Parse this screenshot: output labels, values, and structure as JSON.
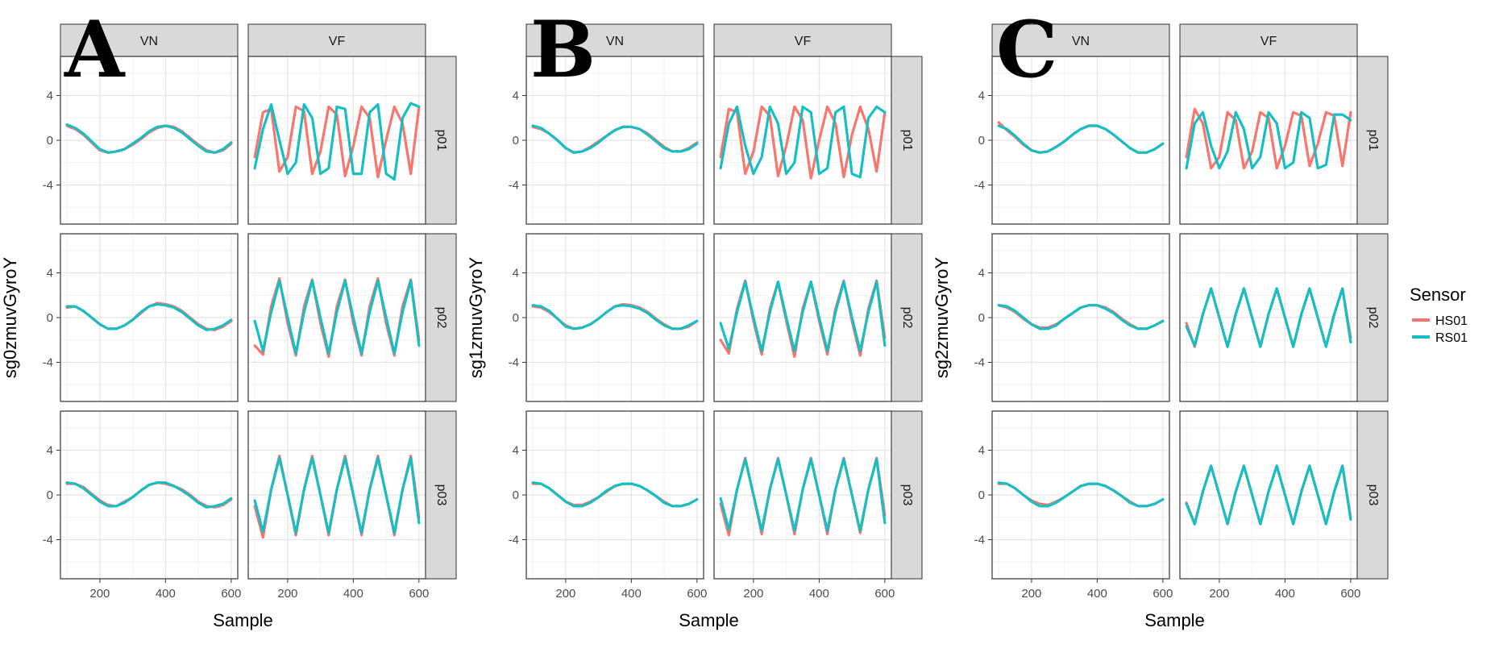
{
  "colors": {
    "HS01": "#F8766D",
    "RS01": "#17BFC4"
  },
  "legend": {
    "title": "Sensor",
    "entries": [
      {
        "label": "HS01",
        "color": "#F8766D"
      },
      {
        "label": "RS01",
        "color": "#17BFC4"
      }
    ]
  },
  "chart_data": [
    {
      "panel_label": "A",
      "type": "line",
      "xlabel": "Sample",
      "ylabel": "sg0zmuvGyroY",
      "columns": [
        "VN",
        "VF"
      ],
      "rows": [
        "p01",
        "p02",
        "p03"
      ],
      "xlim": [
        80,
        620
      ],
      "ylim": [
        -7.5,
        7.5
      ],
      "x_ticks": [
        200,
        400,
        600
      ],
      "y_ticks": [
        4,
        0,
        -4
      ],
      "x_tick_labels": [
        "200",
        "400",
        "600"
      ],
      "y_tick_labels": [
        "4",
        "0",
        "-4"
      ],
      "x": [
        100,
        125,
        150,
        175,
        200,
        225,
        250,
        275,
        300,
        325,
        350,
        375,
        400,
        425,
        450,
        475,
        500,
        525,
        550,
        575,
        600
      ],
      "grid": true,
      "series": [
        {
          "name": "HS01",
          "facets": {
            "VN|p01": [
              1.3,
              1.0,
              0.5,
              -0.2,
              -0.9,
              -1.1,
              -1.0,
              -0.8,
              -0.4,
              0.1,
              0.7,
              1.1,
              1.3,
              1.2,
              0.8,
              0.2,
              -0.4,
              -0.9,
              -1.1,
              -0.9,
              -0.3
            ],
            "VF|p01": [
              -1.5,
              2.5,
              2.8,
              -2.8,
              -1.5,
              3.0,
              2.6,
              -3.0,
              -1.0,
              3.0,
              2.3,
              -3.2,
              -0.5,
              3.0,
              2.0,
              -3.3,
              0.0,
              3.0,
              1.5,
              -3.0,
              3.0
            ],
            "VN|p02": [
              0.9,
              1.0,
              0.6,
              0.0,
              -0.6,
              -1.0,
              -1.0,
              -0.7,
              -0.2,
              0.4,
              1.0,
              1.3,
              1.2,
              1.0,
              0.6,
              0.0,
              -0.6,
              -1.0,
              -1.1,
              -0.8,
              -0.3
            ],
            "VF|p02": [
              -2.5,
              -3.3,
              1.0,
              3.5,
              -0.5,
              -3.4,
              1.0,
              3.4,
              -0.5,
              -3.5,
              1.0,
              3.4,
              -0.5,
              -3.4,
              1.0,
              3.5,
              -0.5,
              -3.4,
              1.0,
              3.4,
              -2.0
            ],
            "VN|p03": [
              1.0,
              1.0,
              0.7,
              0.1,
              -0.5,
              -0.9,
              -1.0,
              -0.6,
              -0.2,
              0.4,
              0.9,
              1.1,
              1.0,
              0.8,
              0.5,
              0.0,
              -0.6,
              -1.0,
              -1.1,
              -0.9,
              -0.4
            ],
            "VF|p03": [
              -1.0,
              -3.8,
              0.5,
              3.5,
              0.0,
              -3.6,
              0.5,
              3.5,
              0.0,
              -3.6,
              0.5,
              3.5,
              0.0,
              -3.6,
              0.5,
              3.5,
              0.0,
              -3.6,
              0.5,
              3.5,
              -2.0
            ]
          }
        },
        {
          "name": "RS01",
          "facets": {
            "VN|p01": [
              1.4,
              1.1,
              0.6,
              -0.1,
              -0.8,
              -1.1,
              -1.0,
              -0.8,
              -0.3,
              0.2,
              0.8,
              1.2,
              1.3,
              1.1,
              0.7,
              0.1,
              -0.5,
              -1.0,
              -1.1,
              -0.8,
              -0.2
            ],
            "VF|p01": [
              -2.5,
              1.0,
              3.2,
              0.0,
              -3.0,
              -2.0,
              3.2,
              2.0,
              -3.0,
              -2.5,
              3.0,
              2.8,
              -3.0,
              -3.0,
              2.5,
              3.2,
              -3.0,
              -3.5,
              2.0,
              3.3,
              3.0
            ],
            "VN|p02": [
              1.0,
              1.0,
              0.6,
              0.0,
              -0.6,
              -1.0,
              -1.0,
              -0.7,
              -0.2,
              0.5,
              1.0,
              1.2,
              1.1,
              0.9,
              0.5,
              -0.1,
              -0.7,
              -1.1,
              -1.0,
              -0.7,
              -0.2
            ],
            "VF|p02": [
              -0.3,
              -3.0,
              0.5,
              3.3,
              0.0,
              -3.2,
              0.5,
              3.3,
              0.0,
              -3.2,
              0.5,
              3.3,
              0.0,
              -3.2,
              0.5,
              3.3,
              0.0,
              -3.2,
              0.5,
              3.3,
              -2.5
            ],
            "VN|p03": [
              1.1,
              1.0,
              0.6,
              0.0,
              -0.6,
              -1.0,
              -1.0,
              -0.7,
              -0.2,
              0.4,
              0.9,
              1.1,
              1.1,
              0.8,
              0.4,
              -0.1,
              -0.7,
              -1.1,
              -1.0,
              -0.8,
              -0.3
            ],
            "VF|p03": [
              -0.5,
              -3.3,
              0.5,
              3.3,
              0.0,
              -3.4,
              0.5,
              3.3,
              0.0,
              -3.4,
              0.5,
              3.3,
              0.0,
              -3.4,
              0.5,
              3.3,
              0.0,
              -3.4,
              0.5,
              3.3,
              -2.5
            ]
          }
        }
      ]
    },
    {
      "panel_label": "B",
      "type": "line",
      "xlabel": "Sample",
      "ylabel": "sg1zmuvGyroY",
      "columns": [
        "VN",
        "VF"
      ],
      "rows": [
        "p01",
        "p02",
        "p03"
      ],
      "xlim": [
        80,
        620
      ],
      "ylim": [
        -7.5,
        7.5
      ],
      "x_ticks": [
        200,
        400,
        600
      ],
      "y_ticks": [
        4,
        0,
        -4
      ],
      "x_tick_labels": [
        "200",
        "400",
        "600"
      ],
      "y_tick_labels": [
        "4",
        "0",
        "-4"
      ],
      "x": [
        100,
        125,
        150,
        175,
        200,
        225,
        250,
        275,
        300,
        325,
        350,
        375,
        400,
        425,
        450,
        475,
        500,
        525,
        550,
        575,
        600
      ],
      "grid": true,
      "series": [
        {
          "name": "HS01",
          "facets": {
            "VN|p01": [
              1.2,
              1.0,
              0.6,
              0.0,
              -0.7,
              -1.1,
              -1.0,
              -0.6,
              -0.1,
              0.4,
              0.9,
              1.2,
              1.2,
              1.0,
              0.6,
              0.0,
              -0.6,
              -1.0,
              -1.0,
              -0.7,
              -0.2
            ],
            "VF|p01": [
              -1.5,
              2.8,
              2.5,
              -3.0,
              -1.0,
              3.0,
              2.2,
              -3.2,
              -0.5,
              3.0,
              1.8,
              -3.4,
              0.0,
              3.0,
              1.5,
              -3.3,
              0.5,
              3.0,
              1.0,
              -2.8,
              2.5
            ],
            "VN|p02": [
              1.0,
              0.9,
              0.5,
              -0.1,
              -0.7,
              -1.0,
              -0.9,
              -0.6,
              -0.1,
              0.5,
              1.0,
              1.2,
              1.1,
              0.9,
              0.5,
              -0.1,
              -0.6,
              -1.0,
              -1.0,
              -0.8,
              -0.3
            ],
            "VF|p02": [
              -2.0,
              -3.2,
              0.8,
              3.3,
              -0.3,
              -3.3,
              0.8,
              3.2,
              -0.3,
              -3.5,
              0.8,
              3.2,
              -0.3,
              -3.3,
              0.8,
              3.3,
              -0.3,
              -3.4,
              0.8,
              3.3,
              -1.8
            ],
            "VN|p03": [
              1.0,
              1.0,
              0.6,
              0.0,
              -0.6,
              -0.9,
              -0.9,
              -0.6,
              -0.2,
              0.3,
              0.8,
              1.0,
              1.0,
              0.8,
              0.4,
              -0.1,
              -0.6,
              -1.0,
              -1.0,
              -0.8,
              -0.4
            ],
            "VF|p03": [
              -0.8,
              -3.6,
              0.5,
              3.3,
              0.0,
              -3.5,
              0.5,
              3.3,
              0.0,
              -3.5,
              0.5,
              3.3,
              0.0,
              -3.5,
              0.5,
              3.3,
              0.0,
              -3.4,
              0.5,
              3.3,
              -1.8
            ]
          }
        },
        {
          "name": "RS01",
          "facets": {
            "VN|p01": [
              1.3,
              1.1,
              0.6,
              0.0,
              -0.7,
              -1.1,
              -1.0,
              -0.7,
              -0.2,
              0.4,
              0.9,
              1.2,
              1.2,
              1.0,
              0.5,
              -0.1,
              -0.7,
              -1.0,
              -1.0,
              -0.8,
              -0.3
            ],
            "VF|p01": [
              -2.5,
              1.5,
              3.0,
              -0.5,
              -3.0,
              -1.5,
              3.0,
              1.5,
              -3.0,
              -2.0,
              3.0,
              2.5,
              -3.0,
              -2.5,
              2.5,
              3.0,
              -3.0,
              -3.3,
              2.0,
              3.0,
              2.5
            ],
            "VN|p02": [
              1.1,
              1.0,
              0.6,
              -0.1,
              -0.8,
              -1.0,
              -0.9,
              -0.6,
              -0.1,
              0.5,
              1.0,
              1.1,
              1.0,
              0.8,
              0.4,
              -0.2,
              -0.7,
              -1.0,
              -1.0,
              -0.7,
              -0.3
            ],
            "VF|p02": [
              -0.5,
              -2.8,
              0.5,
              3.2,
              0.0,
              -3.0,
              0.5,
              3.2,
              0.0,
              -3.0,
              0.5,
              3.2,
              0.0,
              -3.0,
              0.5,
              3.2,
              0.0,
              -3.0,
              0.5,
              3.2,
              -2.5
            ],
            "VN|p03": [
              1.1,
              1.0,
              0.6,
              0.0,
              -0.6,
              -1.0,
              -1.0,
              -0.7,
              -0.2,
              0.4,
              0.8,
              1.0,
              1.0,
              0.8,
              0.4,
              -0.1,
              -0.7,
              -1.0,
              -1.0,
              -0.8,
              -0.4
            ],
            "VF|p03": [
              -0.3,
              -3.1,
              0.5,
              3.2,
              0.0,
              -3.2,
              0.5,
              3.2,
              0.0,
              -3.2,
              0.5,
              3.2,
              0.0,
              -3.2,
              0.5,
              3.2,
              0.0,
              -3.2,
              0.5,
              3.2,
              -2.5
            ]
          }
        }
      ]
    },
    {
      "panel_label": "C",
      "type": "line",
      "xlabel": "Sample",
      "ylabel": "sg2zmuvGyroY",
      "columns": [
        "VN",
        "VF"
      ],
      "rows": [
        "p01",
        "p02",
        "p03"
      ],
      "xlim": [
        80,
        620
      ],
      "ylim": [
        -7.5,
        7.5
      ],
      "x_ticks": [
        200,
        400,
        600
      ],
      "y_ticks": [
        4,
        0,
        -4
      ],
      "x_tick_labels": [
        "200",
        "400",
        "600"
      ],
      "y_tick_labels": [
        "4",
        "0",
        "-4"
      ],
      "x": [
        100,
        125,
        150,
        175,
        200,
        225,
        250,
        275,
        300,
        325,
        350,
        375,
        400,
        425,
        450,
        475,
        500,
        525,
        550,
        575,
        600
      ],
      "grid": true,
      "series": [
        {
          "name": "HS01",
          "facets": {
            "VN|p01": [
              1.6,
              0.9,
              0.3,
              -0.4,
              -0.9,
              -1.1,
              -1.0,
              -0.6,
              -0.1,
              0.5,
              1.0,
              1.3,
              1.3,
              1.0,
              0.5,
              -0.1,
              -0.7,
              -1.1,
              -1.1,
              -0.8,
              -0.3
            ],
            "VF|p01": [
              -1.5,
              2.8,
              1.5,
              -2.5,
              -1.5,
              2.5,
              1.8,
              -2.5,
              -1.0,
              2.5,
              2.0,
              -2.5,
              -0.5,
              2.5,
              2.2,
              -2.3,
              -0.3,
              2.5,
              2.2,
              -2.3,
              2.5
            ],
            "VN|p02": [
              1.1,
              0.9,
              0.5,
              -0.1,
              -0.6,
              -0.9,
              -0.9,
              -0.6,
              -0.1,
              0.4,
              0.9,
              1.1,
              1.1,
              0.9,
              0.5,
              -0.1,
              -0.6,
              -1.0,
              -1.0,
              -0.7,
              -0.3
            ],
            "VF|p02": [
              -0.5,
              -2.6,
              0.3,
              2.6,
              0.0,
              -2.6,
              0.3,
              2.6,
              0.0,
              -2.6,
              0.3,
              2.6,
              0.0,
              -2.6,
              0.3,
              2.6,
              0.0,
              -2.6,
              0.3,
              2.6,
              -1.8
            ],
            "VN|p03": [
              1.0,
              1.0,
              0.6,
              0.0,
              -0.5,
              -0.8,
              -0.9,
              -0.6,
              -0.2,
              0.3,
              0.8,
              1.0,
              1.0,
              0.8,
              0.4,
              -0.1,
              -0.6,
              -1.0,
              -1.0,
              -0.8,
              -0.4
            ],
            "VF|p03": [
              -0.7,
              -2.6,
              0.3,
              2.6,
              0.0,
              -2.6,
              0.3,
              2.6,
              0.0,
              -2.6,
              0.3,
              2.6,
              0.0,
              -2.6,
              0.3,
              2.6,
              0.0,
              -2.6,
              0.3,
              2.6,
              -2.0
            ]
          }
        },
        {
          "name": "RS01",
          "facets": {
            "VN|p01": [
              1.3,
              1.0,
              0.4,
              -0.3,
              -0.9,
              -1.1,
              -1.0,
              -0.6,
              -0.1,
              0.5,
              1.0,
              1.3,
              1.3,
              1.0,
              0.5,
              -0.1,
              -0.7,
              -1.1,
              -1.1,
              -0.8,
              -0.3
            ],
            "VF|p01": [
              -2.5,
              1.5,
              2.5,
              -0.5,
              -2.5,
              -1.0,
              2.5,
              1.0,
              -2.5,
              -1.5,
              2.5,
              1.5,
              -2.5,
              -2.0,
              2.5,
              2.0,
              -2.5,
              -2.2,
              2.3,
              2.3,
              1.8
            ],
            "VN|p02": [
              1.1,
              1.0,
              0.6,
              0.0,
              -0.6,
              -1.0,
              -1.0,
              -0.7,
              -0.1,
              0.4,
              0.9,
              1.1,
              1.1,
              0.8,
              0.4,
              -0.2,
              -0.7,
              -1.0,
              -1.0,
              -0.7,
              -0.3
            ],
            "VF|p02": [
              -0.8,
              -2.5,
              0.3,
              2.6,
              0.0,
              -2.6,
              0.3,
              2.6,
              0.0,
              -2.6,
              0.3,
              2.6,
              0.0,
              -2.6,
              0.3,
              2.6,
              0.0,
              -2.6,
              0.3,
              2.6,
              -2.2
            ],
            "VN|p03": [
              1.1,
              1.0,
              0.6,
              0.0,
              -0.6,
              -1.0,
              -1.0,
              -0.7,
              -0.2,
              0.3,
              0.8,
              1.0,
              1.0,
              0.8,
              0.4,
              -0.1,
              -0.7,
              -1.0,
              -1.0,
              -0.8,
              -0.4
            ],
            "VF|p03": [
              -0.8,
              -2.6,
              0.3,
              2.6,
              0.0,
              -2.6,
              0.3,
              2.6,
              0.0,
              -2.6,
              0.3,
              2.6,
              0.0,
              -2.6,
              0.3,
              2.6,
              0.0,
              -2.6,
              0.3,
              2.6,
              -2.2
            ]
          }
        }
      ]
    }
  ]
}
